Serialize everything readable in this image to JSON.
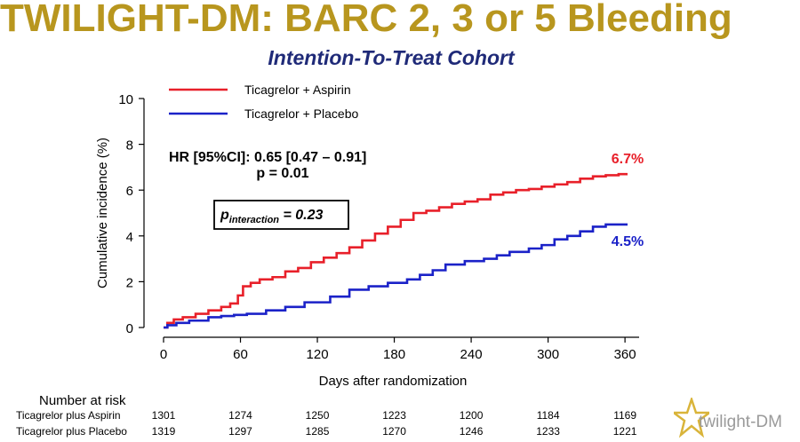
{
  "title": "TWILIGHT-DM: BARC 2, 3 or 5 Bleeding",
  "subtitle": "Intention-To-Treat Cohort",
  "colors": {
    "title": "#B8961E",
    "subtitle": "#1F2A78",
    "aspirin": "#E8202A",
    "placebo": "#1B22C8"
  },
  "chart_data": {
    "type": "line",
    "xlabel": "Days after randomization",
    "ylabel": "Cumulative incidence (%)",
    "xlim": [
      0,
      365
    ],
    "ylim": [
      0,
      10
    ],
    "x_ticks": [
      0,
      60,
      120,
      180,
      240,
      300,
      360
    ],
    "y_ticks": [
      0,
      2,
      4,
      6,
      8,
      10
    ],
    "grid": false,
    "legend_position": "top-left",
    "series": [
      {
        "name": "Ticagrelor + Aspirin",
        "color": "#E8202A",
        "end_label": "6.7%",
        "x": [
          0,
          3,
          8,
          15,
          25,
          35,
          45,
          52,
          58,
          62,
          68,
          75,
          85,
          95,
          105,
          115,
          125,
          135,
          145,
          155,
          165,
          175,
          185,
          195,
          205,
          215,
          225,
          235,
          245,
          255,
          265,
          275,
          285,
          295,
          305,
          315,
          325,
          335,
          345,
          355,
          362
        ],
        "y": [
          0,
          0.2,
          0.35,
          0.45,
          0.6,
          0.75,
          0.9,
          1.05,
          1.4,
          1.8,
          1.95,
          2.1,
          2.2,
          2.45,
          2.6,
          2.85,
          3.05,
          3.25,
          3.5,
          3.8,
          4.1,
          4.4,
          4.7,
          5.0,
          5.1,
          5.25,
          5.4,
          5.5,
          5.6,
          5.8,
          5.9,
          6.0,
          6.05,
          6.15,
          6.25,
          6.35,
          6.5,
          6.6,
          6.65,
          6.7,
          6.7
        ]
      },
      {
        "name": "Ticagrelor + Placebo",
        "color": "#1B22C8",
        "end_label": "4.5%",
        "x": [
          0,
          3,
          10,
          20,
          35,
          45,
          55,
          65,
          80,
          95,
          110,
          130,
          145,
          160,
          175,
          190,
          200,
          210,
          220,
          235,
          250,
          260,
          270,
          285,
          295,
          305,
          315,
          325,
          335,
          345,
          362
        ],
        "y": [
          0,
          0.1,
          0.2,
          0.3,
          0.45,
          0.5,
          0.55,
          0.6,
          0.75,
          0.9,
          1.1,
          1.35,
          1.65,
          1.8,
          1.95,
          2.1,
          2.3,
          2.5,
          2.75,
          2.9,
          3.0,
          3.15,
          3.3,
          3.45,
          3.6,
          3.85,
          4.0,
          4.2,
          4.4,
          4.5,
          4.5
        ]
      }
    ],
    "annotations": {
      "hr_line1": "HR [95%CI]: 0.65 [0.47 – 0.91]",
      "hr_line2": "p = 0.01",
      "interaction_p": "p",
      "interaction_sub": "interaction",
      "interaction_value": " = 0.23"
    }
  },
  "risk_table": {
    "header": "Number at risk",
    "rows": [
      {
        "label": "Ticagrelor plus Aspirin",
        "values": [
          "1301",
          "1274",
          "1250",
          "1223",
          "1200",
          "1184",
          "1169"
        ]
      },
      {
        "label": "Ticagrelor plus Placebo",
        "values": [
          "1319",
          "1297",
          "1285",
          "1270",
          "1246",
          "1233",
          "1221"
        ]
      }
    ]
  },
  "logo": {
    "text": "twilight-DM",
    "icon": "star-icon"
  }
}
